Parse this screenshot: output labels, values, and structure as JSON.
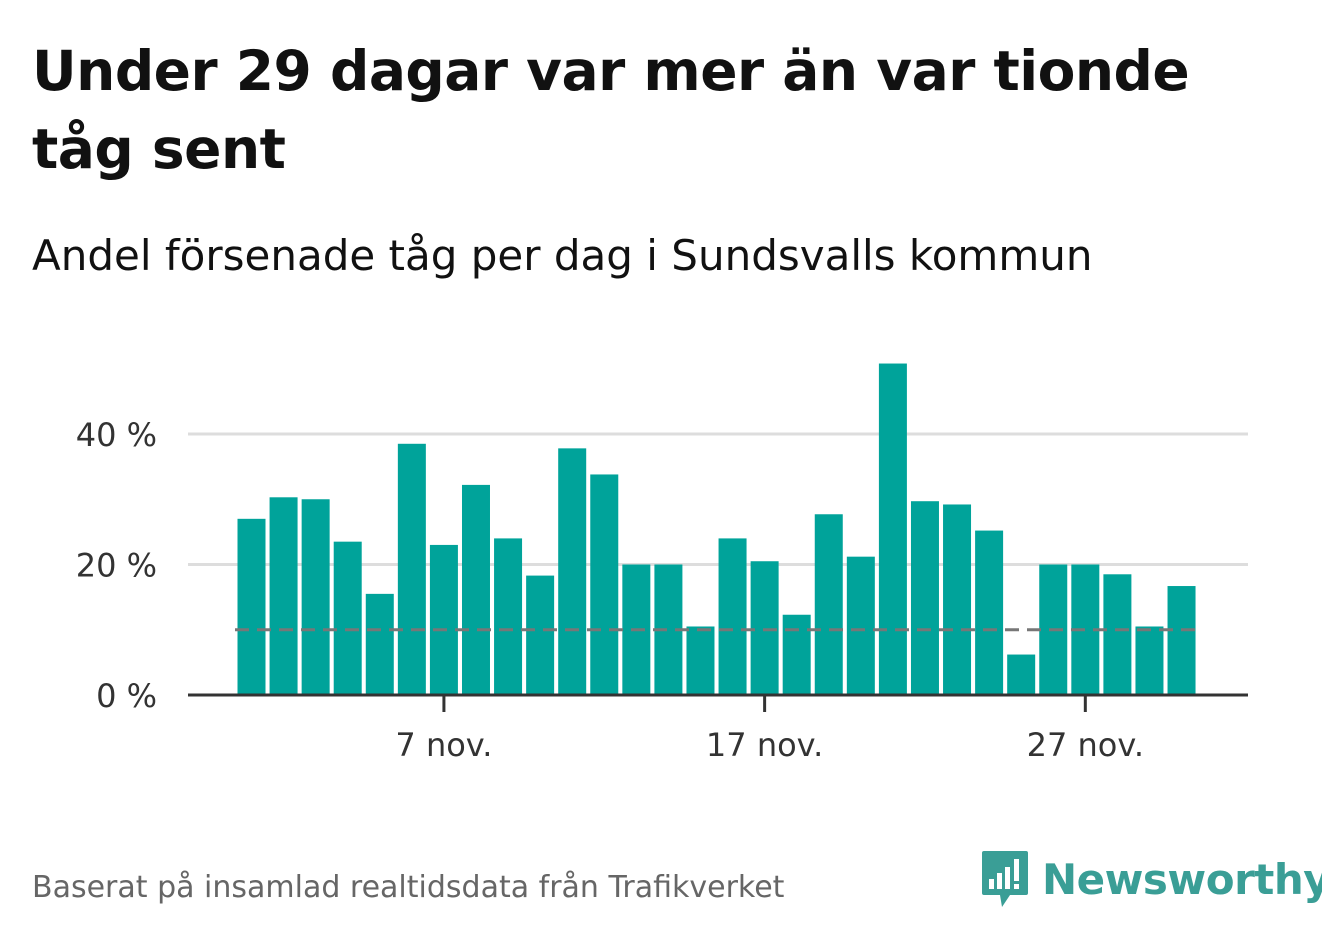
{
  "title": "Under 29 dagar var mer än var tionde tåg sent",
  "subtitle": "Andel försenade tåg per dag i Sundsvalls kommun",
  "footer": "Baserat på insamlad realtidsdata från Trafikverket",
  "brand": "Newsworthy",
  "colors": {
    "bar": "#00a39a",
    "reference_line": "#777777",
    "grid": "#dddddd",
    "axis": "#333333",
    "brand": "#3a9e96"
  },
  "chart_data": {
    "type": "bar",
    "categories": [
      "1 nov.",
      "2 nov.",
      "3 nov.",
      "4 nov.",
      "5 nov.",
      "6 nov.",
      "7 nov.",
      "8 nov.",
      "9 nov.",
      "10 nov.",
      "11 nov.",
      "12 nov.",
      "13 nov.",
      "14 nov.",
      "15 nov.",
      "16 nov.",
      "17 nov.",
      "18 nov.",
      "19 nov.",
      "20 nov.",
      "21 nov.",
      "22 nov.",
      "23 nov.",
      "24 nov.",
      "25 nov.",
      "26 nov.",
      "27 nov.",
      "28 nov.",
      "29 nov.",
      "30 nov."
    ],
    "values": [
      27,
      30.3,
      30,
      23.5,
      15.5,
      38.5,
      23,
      32.2,
      24,
      18.3,
      37.8,
      33.8,
      20,
      20,
      10.5,
      24,
      20.5,
      12.3,
      27.7,
      21.2,
      50.8,
      29.7,
      29.2,
      25.2,
      6.2,
      20,
      20,
      18.5,
      10.5,
      16.7
    ],
    "reference_line": 10,
    "yticks": [
      0,
      20,
      40
    ],
    "ytick_labels": [
      "0 %",
      "20 %",
      "40 %"
    ],
    "xticks": [
      "7 nov.",
      "17 nov.",
      "27 nov."
    ],
    "ylim": [
      0,
      52
    ],
    "grid": true,
    "xlabel": "",
    "ylabel": ""
  }
}
